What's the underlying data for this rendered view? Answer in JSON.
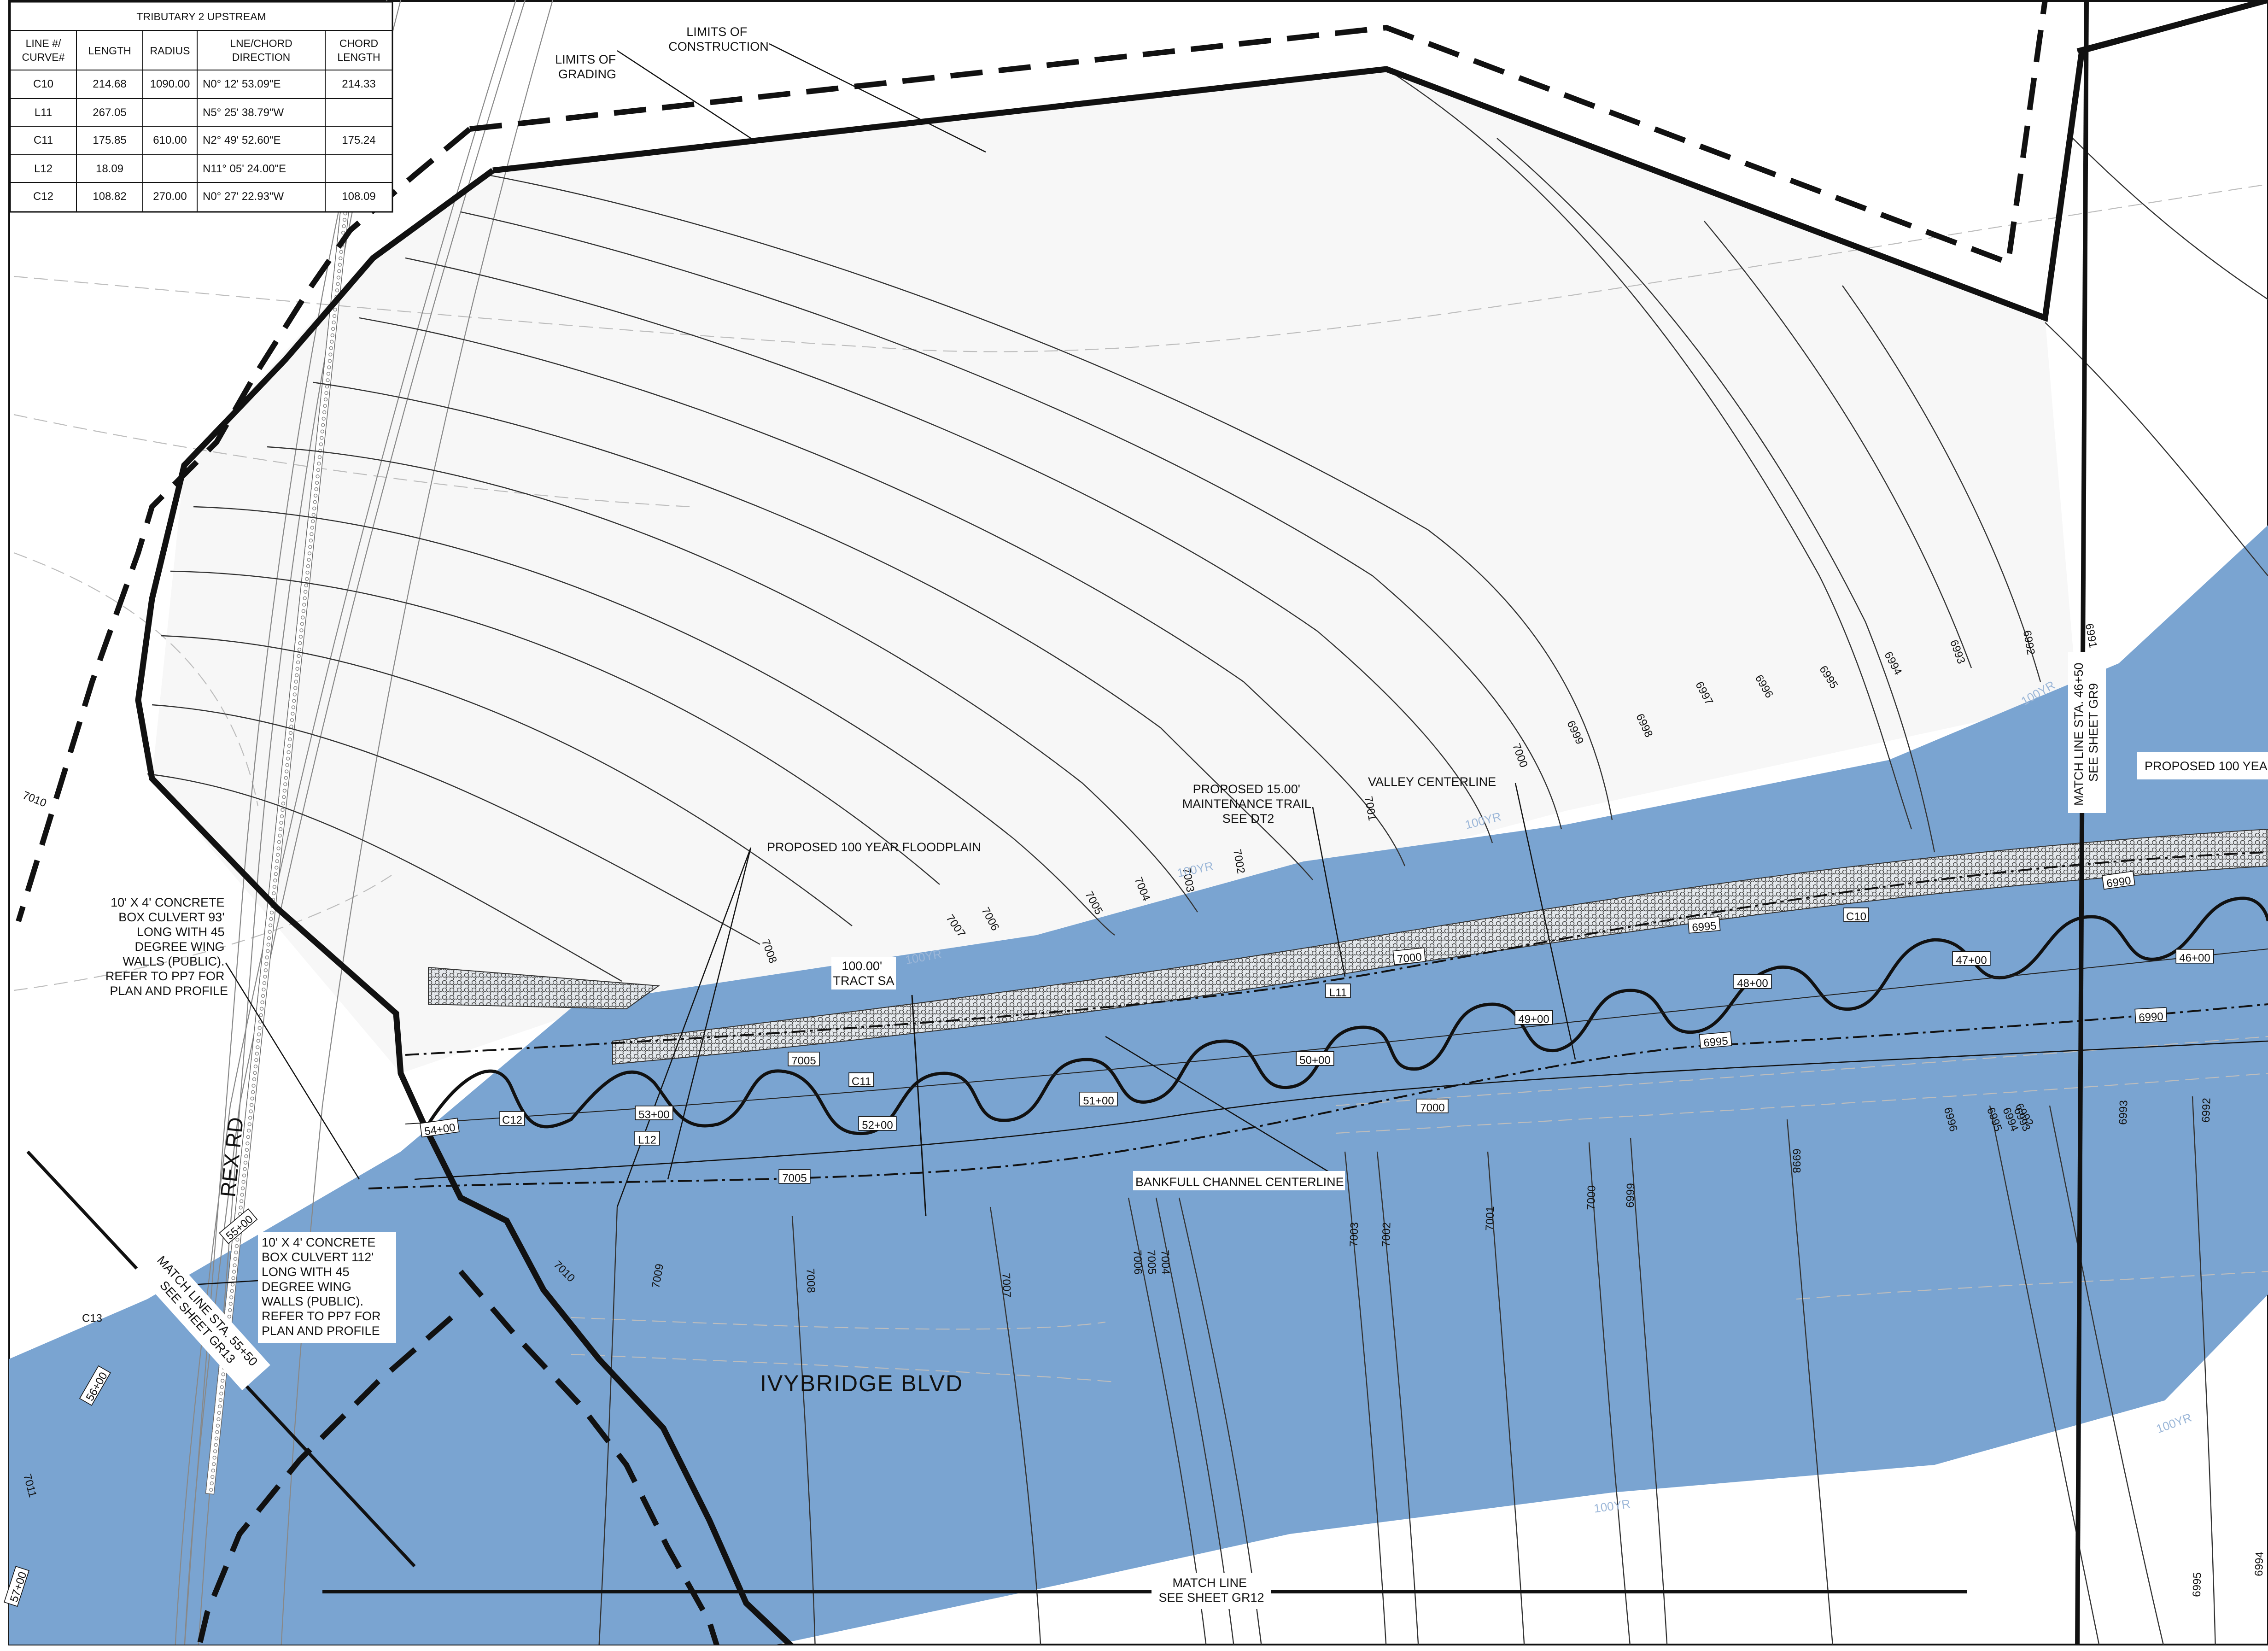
{
  "table": {
    "title": "TRIBUTARY 2 UPSTREAM",
    "headers": [
      "LINE #/\nCURVE#",
      "LENGTH",
      "RADIUS",
      "LNE/CHORD\nDIRECTION",
      "CHORD\nLENGTH"
    ],
    "rows": [
      [
        "C10",
        "214.68",
        "1090.00",
        "N0° 12' 53.09\"E",
        "214.33"
      ],
      [
        "L11",
        "267.05",
        "",
        "N5° 25' 38.79\"W",
        ""
      ],
      [
        "C11",
        "175.85",
        "610.00",
        "N2° 49' 52.60\"E",
        "175.24"
      ],
      [
        "L12",
        "18.09",
        "",
        "N11° 05' 24.00\"E",
        ""
      ],
      [
        "C12",
        "108.82",
        "270.00",
        "N0° 27' 22.93\"W",
        "108.09"
      ]
    ]
  },
  "notes": {
    "limits_of_grading": [
      "LIMITS OF",
      "GRADING"
    ],
    "limits_of_construction": [
      "LIMITS OF",
      "CONSTRUCTION"
    ],
    "floodplain": "PROPOSED 100 YEAR FLOODPLAIN",
    "floodplain_right": "PROPOSED 100 YEA",
    "maintenance_trail": [
      "PROPOSED 15.00'",
      "MAINTENANCE TRAIL",
      "SEE DT2"
    ],
    "valley_centerline": "VALLEY CENTERLINE",
    "tract": [
      "100.00'",
      "TRACT SA"
    ],
    "bankfull": "BANKFULL CHANNEL CENTERLINE",
    "culvert1": [
      "10' X 4' CONCRETE",
      "BOX CULVERT 93'",
      "LONG WITH 45",
      "DEGREE WING",
      "WALLS (PUBLIC).",
      "REFER TO PP7 FOR",
      "PLAN AND PROFILE"
    ],
    "culvert2": [
      "10' X 4' CONCRETE",
      "BOX CULVERT 112'",
      "LONG WITH 45",
      "DEGREE WING",
      "WALLS (PUBLIC).",
      "REFER TO PP7 FOR",
      "PLAN AND PROFILE"
    ],
    "match_right": [
      "MATCH LINE STA. 46+50",
      "SEE SHEET GR9"
    ],
    "match_left": [
      "MATCH LINE STA. 55+50",
      "SEE SHEET GR13"
    ],
    "match_bottom": [
      "MATCH LINE",
      "SEE SHEET GR12"
    ]
  },
  "roads": {
    "rex": "REX RD",
    "ivybridge": "IVYBRIDGE BLVD"
  },
  "stations": [
    "57+00",
    "56+00",
    "55+00",
    "54+00",
    "53+00",
    "52+00",
    "51+00",
    "50+00",
    "49+00",
    "48+00",
    "47+00",
    "46+00"
  ],
  "curve_tags": [
    "C10",
    "L11",
    "C11",
    "L12",
    "C12",
    "C13"
  ],
  "channel_elev": [
    "7005",
    "7000",
    "6995",
    "6990",
    "7005",
    "7000",
    "6995",
    "6990"
  ],
  "contour_labels": [
    "6999",
    "6998",
    "6997",
    "6996",
    "6995",
    "6994",
    "6993",
    "6992",
    "6991",
    "7000",
    "7001",
    "7002",
    "7003",
    "7004",
    "7005",
    "7006",
    "7007",
    "7008"
  ],
  "bottom_labels": [
    "7010",
    "7009",
    "7008",
    "7007",
    "7006",
    "7005",
    "7004",
    "7003",
    "7002",
    "7001",
    "7000",
    "6999",
    "6998",
    "6996",
    "6995",
    "6994",
    "6993",
    "6992",
    "6995",
    "6994",
    "6993",
    "6992"
  ],
  "contour_left": [
    "7010",
    "7011"
  ],
  "existing_labels": [
    "100YR",
    "100YR",
    "100YR",
    "100YR",
    "100YR",
    "100YR"
  ],
  "colors": {
    "floodplain": "#7aa4d1",
    "trail_fill": "#c9cfd6",
    "linework": "#111111",
    "existing": "#bdbdbd"
  }
}
